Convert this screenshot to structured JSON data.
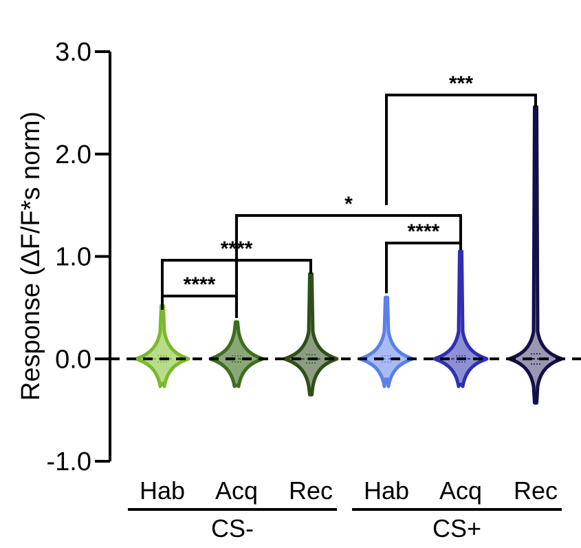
{
  "chart_data": {
    "type": "violin",
    "ylabel": "Response (ΔF/F*s norm)",
    "xlabel": "",
    "ylim": [
      -1.0,
      3.0
    ],
    "yticks": [
      -1.0,
      0.0,
      1.0,
      2.0,
      3.0
    ],
    "ytick_labels": [
      "-1.0",
      "0.0",
      "1.0",
      "2.0",
      "3.0"
    ],
    "reference_line": {
      "y": 0.0,
      "style": "dashed"
    },
    "categories": [
      "Hab",
      "Acq",
      "Rec",
      "Hab",
      "Acq",
      "Rec"
    ],
    "groups": [
      {
        "label": "CS-",
        "members": [
          0,
          1,
          2
        ]
      },
      {
        "label": "CS+",
        "members": [
          3,
          4,
          5
        ]
      }
    ],
    "series": [
      {
        "group": "CS-",
        "category": "Hab",
        "color": "#7cb82f",
        "fill": "#b8dd8a",
        "max": 0.52,
        "min": -0.24,
        "median": 0.0,
        "q1": -0.03,
        "q3": 0.03
      },
      {
        "group": "CS-",
        "category": "Acq",
        "color": "#3f6d1e",
        "fill": "#8aa877",
        "max": 0.36,
        "min": -0.26,
        "median": 0.0,
        "q1": -0.03,
        "q3": 0.03
      },
      {
        "group": "CS-",
        "category": "Rec",
        "color": "#2e5016",
        "fill": "#8c9e82",
        "max": 0.83,
        "min": -0.35,
        "median": 0.0,
        "q1": -0.04,
        "q3": 0.04
      },
      {
        "group": "CS+",
        "category": "Hab",
        "color": "#5b80ea",
        "fill": "#a9bbf3",
        "max": 0.6,
        "min": -0.2,
        "median": 0.0,
        "q1": -0.03,
        "q3": 0.03
      },
      {
        "group": "CS+",
        "category": "Acq",
        "color": "#2e2fb3",
        "fill": "#8e90d2",
        "max": 1.05,
        "min": -0.25,
        "median": 0.0,
        "q1": -0.03,
        "q3": 0.03
      },
      {
        "group": "CS+",
        "category": "Rec",
        "color": "#12104a",
        "fill": "#9a97b0",
        "max": 2.46,
        "min": -0.43,
        "median": 0.0,
        "q1": -0.05,
        "q3": 0.05
      }
    ],
    "comparisons": [
      {
        "from": 0,
        "to": 1,
        "label": "****"
      },
      {
        "from": 0,
        "to": 2,
        "label": "****"
      },
      {
        "from": 1,
        "to": 4,
        "label": "*"
      },
      {
        "from": 3,
        "to": 4,
        "label": "****"
      },
      {
        "from": 3,
        "to": 5,
        "label": "***"
      }
    ],
    "grid": false,
    "legend": "none"
  }
}
